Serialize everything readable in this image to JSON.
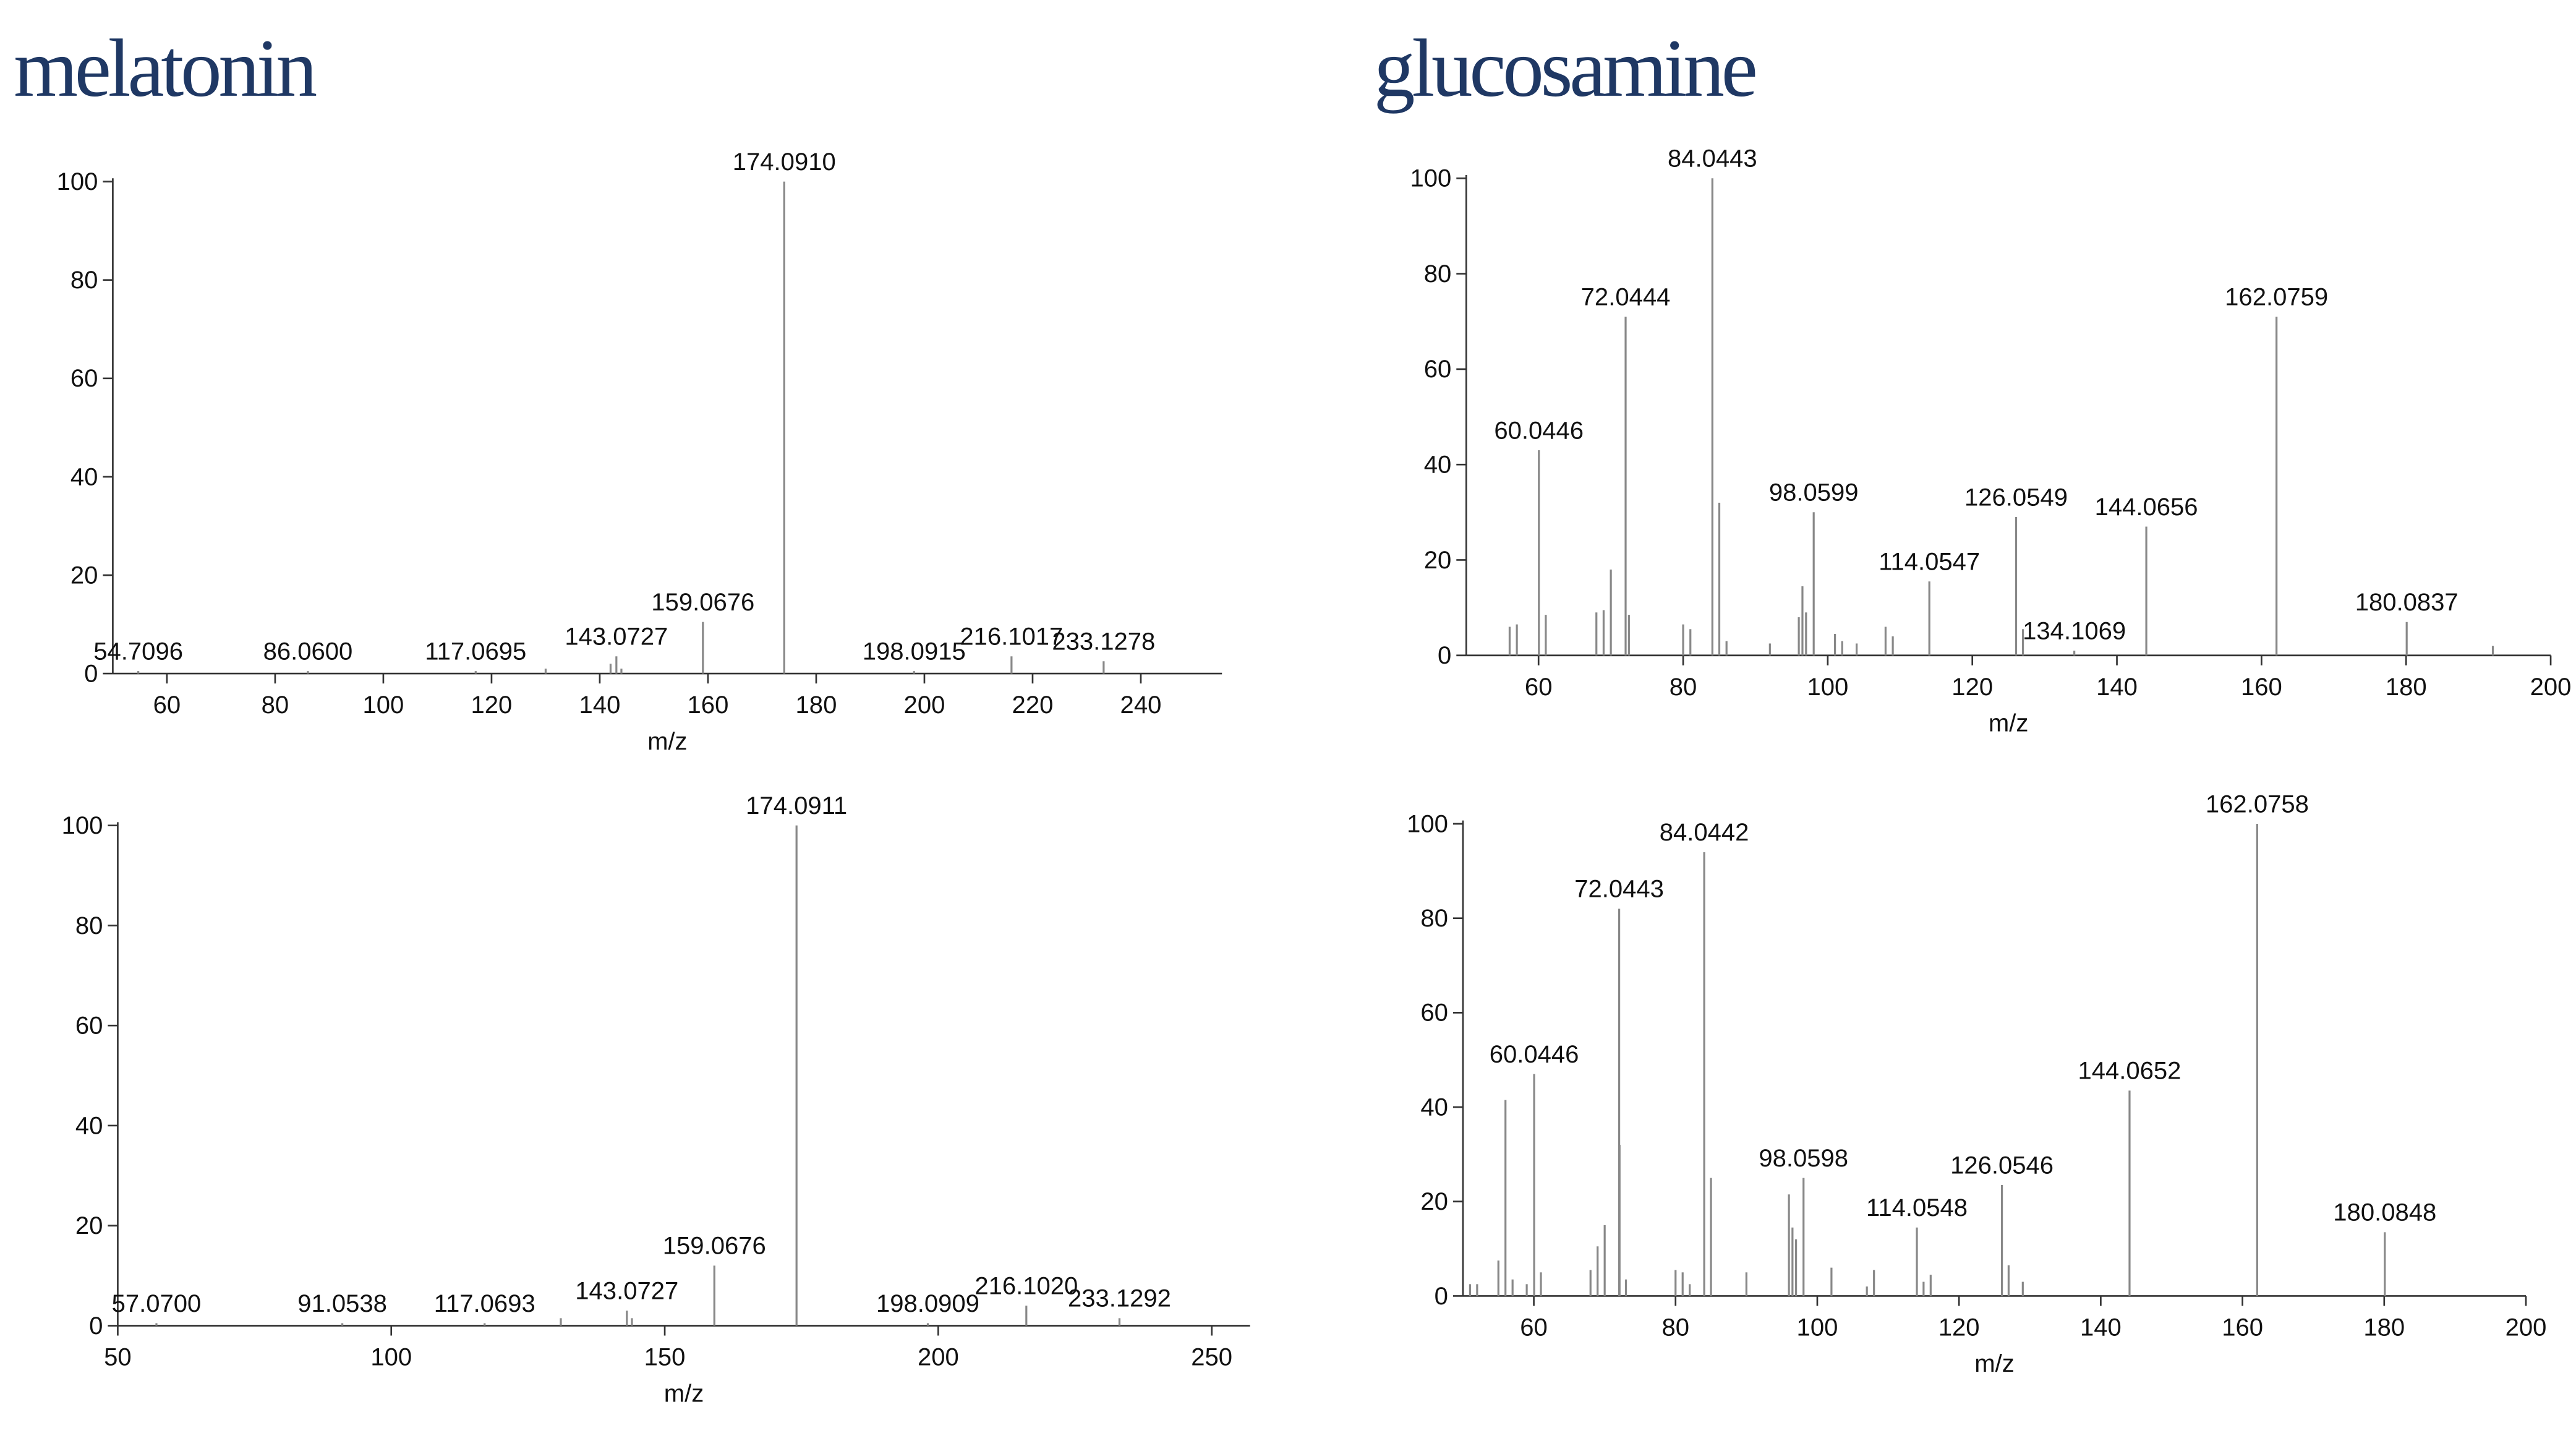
{
  "headings": [
    "melatonin",
    "glucosamine"
  ],
  "chart_data": [
    {
      "type": "bar",
      "xlabel": "m/z",
      "xlim": [
        50,
        255
      ],
      "ylim": [
        0,
        100
      ],
      "xticks": [
        60,
        80,
        100,
        120,
        140,
        160,
        180,
        200,
        220,
        240
      ],
      "yticks": [
        0,
        20,
        40,
        60,
        80,
        100
      ],
      "color": "#888888",
      "x": [
        54.7096,
        86.06,
        117.0695,
        130,
        142,
        143.0727,
        144,
        159.0676,
        174.091,
        198.0915,
        216.1017,
        233.1278
      ],
      "values": [
        0.5,
        0.5,
        0.5,
        1,
        2,
        3.5,
        1,
        10.5,
        100,
        0.5,
        3.5,
        2.5
      ],
      "x_labels": [
        "54.7096",
        "86.0600",
        "117.0695",
        null,
        null,
        "143.0727",
        null,
        "159.0676",
        "174.0910",
        "198.0915",
        "216.1017",
        "233.1278"
      ]
    },
    {
      "type": "bar",
      "xlabel": "m/z",
      "xlim": [
        50,
        257
      ],
      "ylim": [
        0,
        100
      ],
      "xticks": [
        50,
        100,
        150,
        200,
        250
      ],
      "yticks": [
        0,
        20,
        40,
        60,
        80,
        100
      ],
      "color": "#888888",
      "x": [
        57.07,
        91.0538,
        117.0693,
        131,
        143.0727,
        144,
        159.0676,
        174.0911,
        198.0909,
        216.102,
        233.1292
      ],
      "values": [
        0.5,
        0.5,
        0.5,
        1.5,
        3,
        1.5,
        12,
        100,
        0.5,
        4,
        1.5
      ],
      "x_labels": [
        "57.0700",
        "91.0538",
        "117.0693",
        null,
        "143.0727",
        null,
        "159.0676",
        "174.0911",
        "198.0909",
        "216.1020",
        "233.1292"
      ]
    },
    {
      "type": "bar",
      "xlabel": "m/z",
      "xlim": [
        50,
        200
      ],
      "ylim": [
        0,
        100
      ],
      "xticks": [
        60,
        80,
        100,
        120,
        140,
        160,
        180,
        200
      ],
      "yticks": [
        0,
        20,
        40,
        60,
        80,
        100
      ],
      "color": "#888888",
      "x": [
        56,
        57,
        60.0446,
        61,
        68,
        69,
        70,
        72.0444,
        72.5,
        80,
        81,
        84.0443,
        85,
        86,
        92,
        96,
        96.5,
        97,
        98.0599,
        101,
        102,
        104,
        108,
        109,
        114.0547,
        126.0549,
        127,
        134.1069,
        144.0656,
        162.0759,
        180.0837,
        192
      ],
      "values": [
        6,
        6.5,
        43,
        8.5,
        9,
        9.5,
        18,
        71,
        8.5,
        6.5,
        5.5,
        100,
        32,
        3,
        2.5,
        8,
        14.5,
        9,
        30,
        4.5,
        3,
        2.5,
        6,
        4,
        15.5,
        29,
        5.5,
        1,
        27,
        71,
        7,
        2
      ],
      "x_labels": [
        null,
        null,
        "60.0446",
        null,
        null,
        null,
        null,
        "72.0444",
        null,
        null,
        null,
        "84.0443",
        null,
        null,
        null,
        null,
        null,
        null,
        "98.0599",
        null,
        null,
        null,
        null,
        null,
        "114.0547",
        "126.0549",
        null,
        "134.1069",
        "144.0656",
        "162.0759",
        "180.0837",
        null
      ]
    },
    {
      "type": "bar",
      "xlabel": "m/z",
      "xlim": [
        50,
        200
      ],
      "ylim": [
        0,
        100
      ],
      "xticks": [
        60,
        80,
        100,
        120,
        140,
        160,
        180,
        200
      ],
      "yticks": [
        0,
        20,
        40,
        60,
        80,
        100
      ],
      "color": "#888888",
      "x": [
        51,
        52,
        55,
        56,
        57,
        59,
        60.0446,
        61,
        68,
        69,
        70,
        72.0443,
        72.1,
        73,
        80,
        81,
        82,
        84.0442,
        85,
        90,
        96,
        96.5,
        97,
        98.0598,
        102,
        107,
        108,
        114.0548,
        115,
        116,
        126.0546,
        127,
        129,
        144.0652,
        162.0758,
        180.0848
      ],
      "values": [
        2.5,
        2.5,
        7.5,
        41.5,
        3.5,
        2.5,
        47,
        5,
        5.5,
        10.5,
        15,
        82,
        32,
        3.5,
        5.5,
        5,
        2.5,
        94,
        25,
        5,
        21.5,
        14.5,
        12,
        25,
        6,
        2,
        5.5,
        14.5,
        3,
        4.5,
        23.5,
        6.5,
        3,
        43.5,
        100,
        13.5
      ],
      "x_labels": [
        null,
        null,
        null,
        null,
        null,
        null,
        "60.0446",
        null,
        null,
        null,
        null,
        "72.0443",
        null,
        null,
        null,
        null,
        null,
        "84.0442",
        null,
        null,
        null,
        null,
        null,
        "98.0598",
        null,
        null,
        null,
        "114.0548",
        null,
        null,
        "126.0546",
        null,
        null,
        "144.0652",
        "162.0758",
        "180.0848"
      ]
    }
  ]
}
